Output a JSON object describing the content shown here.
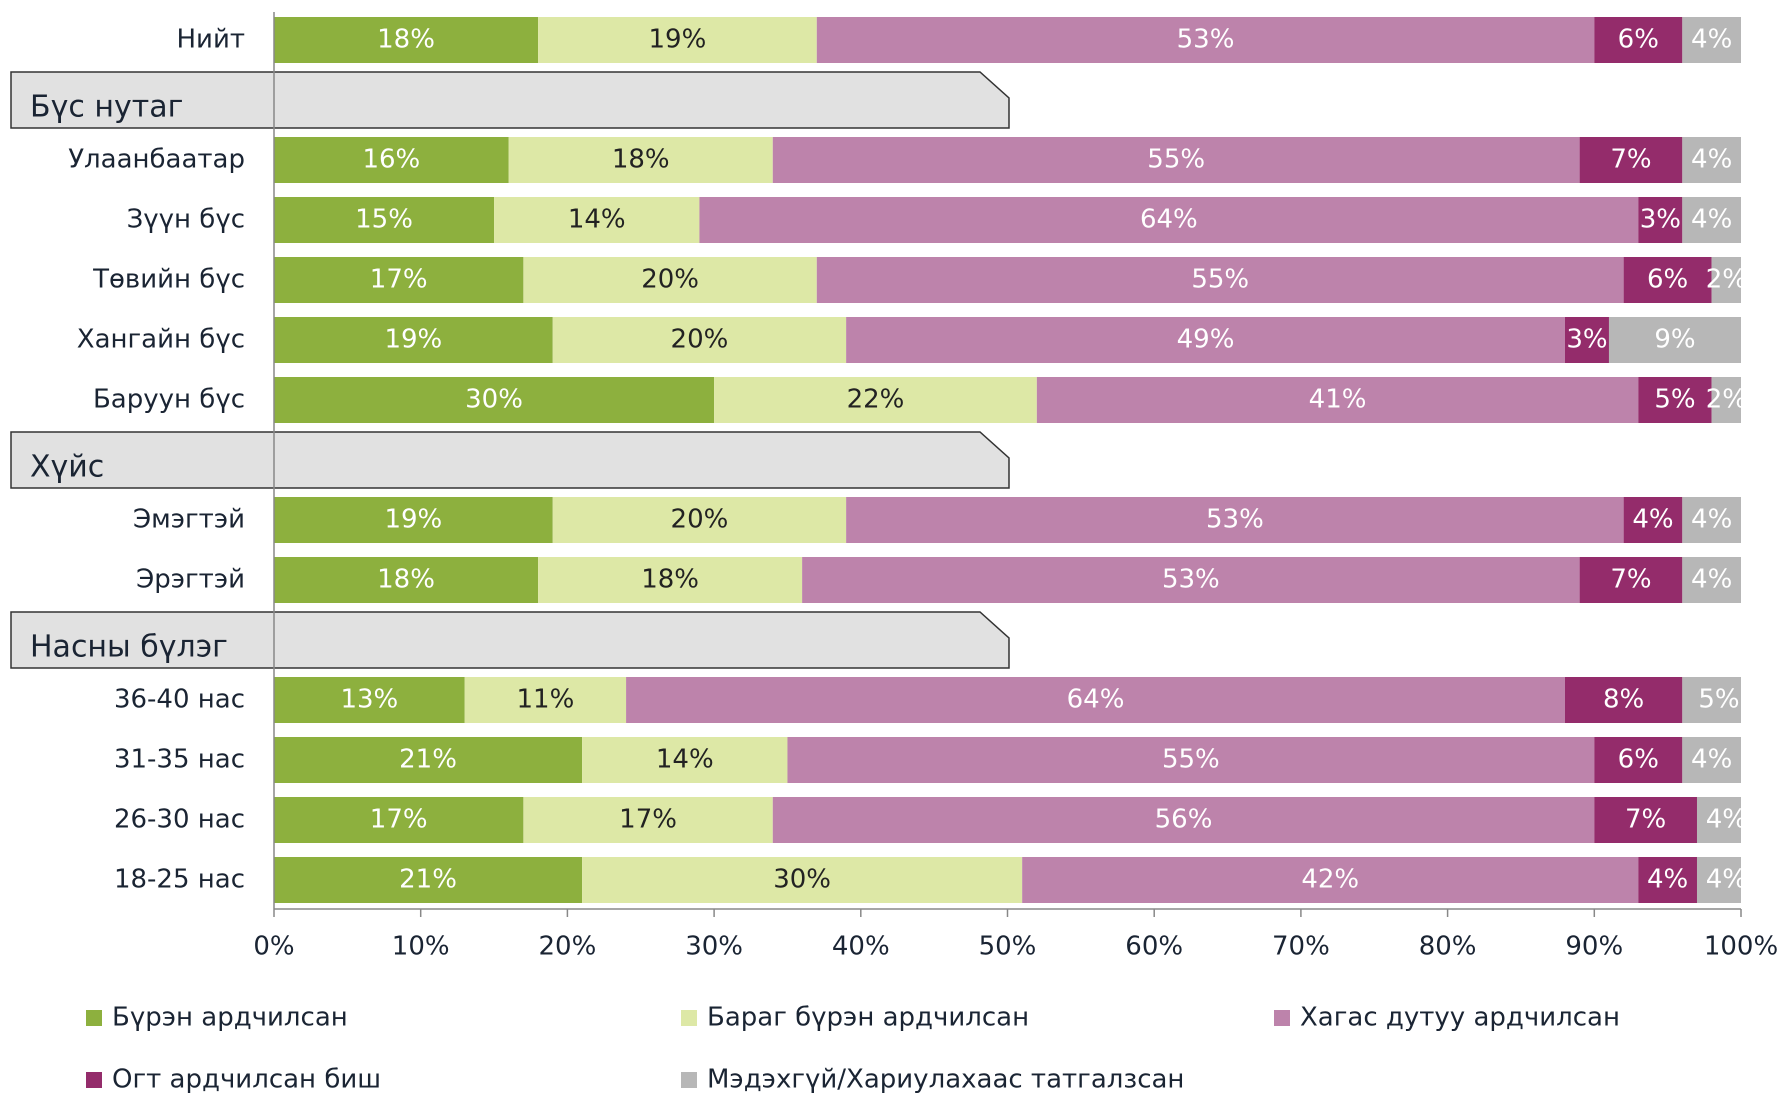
{
  "chart_data": {
    "type": "stacked_bar_horizontal",
    "categories": [
      "Нийт",
      null,
      "Улаанбаатар",
      "Зүүн бүс",
      "Төвийн бүс",
      "Хангайн бүс",
      "Баруун бүс",
      null,
      "Эмэгтэй",
      "Эрэгтэй",
      null,
      "36-40 нас",
      "31-35 нас",
      "26-30 нас",
      "18-25 нас"
    ],
    "headers": [
      null,
      "Бүс нутаг",
      null,
      null,
      null,
      null,
      null,
      "Хүйс",
      null,
      null,
      "Насны бүлэг",
      null,
      null,
      null,
      null
    ],
    "series": [
      {
        "name": "Бүрэн ардчилсан",
        "color": "#8db03e",
        "label_color": "#ffffff",
        "values": [
          18,
          null,
          16,
          15,
          17,
          19,
          30,
          null,
          19,
          18,
          null,
          13,
          21,
          17,
          21
        ],
        "value_labels": [
          "18%",
          null,
          "16%",
          "15%",
          "17%",
          "19%",
          "30%",
          null,
          "19%",
          "18%",
          null,
          "13%",
          "21%",
          "17%",
          "21%"
        ]
      },
      {
        "name": "Бараг бүрэн ардчилсан",
        "color": "#dde8a6",
        "label_color": "#222222",
        "values": [
          19,
          null,
          18,
          14,
          20,
          20,
          22,
          null,
          20,
          18,
          null,
          11,
          14,
          17,
          30
        ],
        "value_labels": [
          "19%",
          null,
          "18%",
          "14%",
          "20%",
          "20%",
          "22%",
          null,
          "20%",
          "18%",
          null,
          "11%",
          "14%",
          "17%",
          "30%"
        ]
      },
      {
        "name": "Хагас дутуу ардчилсан",
        "color": "#bd83ab",
        "label_color": "#ffffff",
        "values": [
          53,
          null,
          55,
          64,
          55,
          49,
          41,
          null,
          53,
          53,
          null,
          64,
          55,
          56,
          42
        ],
        "value_labels": [
          "53%",
          null,
          "55%",
          "64%",
          "55%",
          "49%",
          "41%",
          null,
          "53%",
          "53%",
          null,
          "64%",
          "55%",
          "56%",
          "42%"
        ]
      },
      {
        "name": "Огт ардчилсан биш",
        "color": "#942c6b",
        "label_color": "#ffffff",
        "values": [
          6,
          null,
          7,
          3,
          6,
          3,
          5,
          null,
          4,
          7,
          null,
          8,
          6,
          7,
          4
        ],
        "value_labels": [
          "6%",
          null,
          "7%",
          "3%",
          "6%",
          "3%",
          "5%",
          null,
          "4%",
          "7%",
          null,
          "8%",
          "6%",
          "7%",
          "4%"
        ]
      },
      {
        "name": "Мэдэхгүй/Хариулахаас татгалзсан",
        "color": "#b7b7b7",
        "label_color": "#ffffff",
        "values": [
          4,
          null,
          4,
          4,
          2,
          9,
          2,
          null,
          4,
          4,
          null,
          5,
          4,
          4,
          4
        ],
        "value_labels": [
          "4%",
          null,
          "4%",
          "4%",
          "2%",
          "9%",
          "2%",
          null,
          "4%",
          "4%",
          null,
          "5%",
          "4%",
          "4%",
          "4%"
        ]
      }
    ],
    "xlim": [
      0,
      100
    ],
    "xticks": [
      {
        "value": 0,
        "label": "0%"
      },
      {
        "value": 10,
        "label": "10%"
      },
      {
        "value": 20,
        "label": "20%"
      },
      {
        "value": 30,
        "label": "30%"
      },
      {
        "value": 40,
        "label": "40%"
      },
      {
        "value": 50,
        "label": "50%"
      },
      {
        "value": 60,
        "label": "60%"
      },
      {
        "value": 70,
        "label": "70%"
      },
      {
        "value": 80,
        "label": "80%"
      },
      {
        "value": 90,
        "label": "90%"
      },
      {
        "value": 100,
        "label": "100%"
      }
    ],
    "legend": "bottom"
  }
}
